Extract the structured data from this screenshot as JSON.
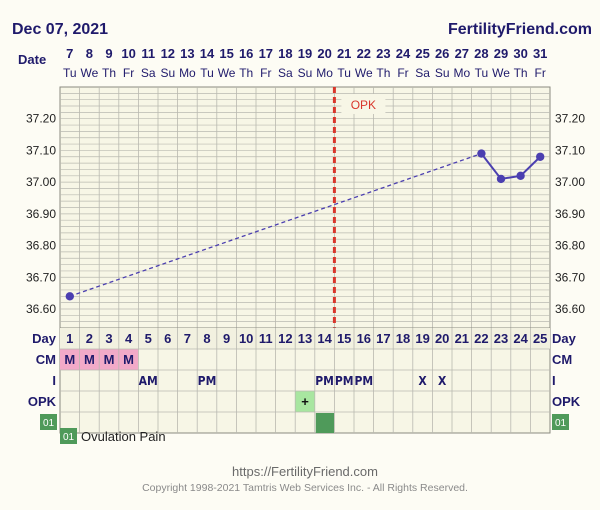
{
  "header": {
    "date": "Dec 07, 2021",
    "brand": "FertilityFriend.com"
  },
  "labels": {
    "date": "Date",
    "day": "Day",
    "cm": "CM",
    "i": "I",
    "opk": "OPK",
    "note_code": "01"
  },
  "dates": [
    "7",
    "8",
    "9",
    "10",
    "11",
    "12",
    "13",
    "14",
    "15",
    "16",
    "17",
    "18",
    "19",
    "20",
    "21",
    "22",
    "23",
    "24",
    "25",
    "26",
    "27",
    "28",
    "29",
    "30",
    "31"
  ],
  "weekdays": [
    "Tu",
    "We",
    "Th",
    "Fr",
    "Sa",
    "Su",
    "Mo",
    "Tu",
    "We",
    "Th",
    "Fr",
    "Sa",
    "Su",
    "Mo",
    "Tu",
    "We",
    "Th",
    "Fr",
    "Sa",
    "Su",
    "Mo",
    "Tu",
    "We",
    "Th",
    "Fr"
  ],
  "cm": [
    "M",
    "M",
    "M",
    "M",
    "",
    "",
    "",
    "",
    "",
    "",
    "",
    "",
    "",
    "",
    "",
    "",
    "",
    "",
    "",
    "",
    "",
    "",
    "",
    "",
    ""
  ],
  "intercourse": [
    "",
    "",
    "",
    "",
    "AM",
    "",
    "",
    "PM",
    "",
    "",
    "",
    "",
    "",
    "PM",
    "PM",
    "PM",
    "",
    "",
    "X",
    "X",
    "",
    "",
    "",
    "",
    ""
  ],
  "opk": [
    "",
    "",
    "",
    "",
    "",
    "",
    "",
    "",
    "",
    "",
    "",
    "",
    "+",
    "",
    "",
    "",
    "",
    "",
    "",
    "",
    "",
    "",
    "",
    "",
    ""
  ],
  "notes": [
    "",
    "",
    "",
    "",
    "",
    "",
    "",
    "",
    "",
    "",
    "",
    "",
    "",
    "01",
    "",
    "",
    "",
    "",
    "",
    "",
    "",
    "",
    "",
    "",
    ""
  ],
  "legend": {
    "code": "01",
    "text": "Ovulation Pain"
  },
  "footer": {
    "url": "https://FertilityFriend.com",
    "copyright": "Copyright 1998-2021 Tamtris Web Services Inc. - All Rights Reserved."
  },
  "colors": {
    "line": "#4b3fb0",
    "ovulation": "#d9362b",
    "cm": "#f2aac8",
    "opk_pos": "#a8e6a0",
    "note": "#4f9a5a",
    "grid": "#b9b9b0",
    "text": "#1f1a6b"
  },
  "chart_data": {
    "type": "line",
    "x": [
      1,
      2,
      3,
      4,
      5,
      6,
      7,
      8,
      9,
      10,
      11,
      12,
      13,
      14,
      15,
      16,
      17,
      18,
      19,
      20,
      21,
      22,
      23,
      24,
      25
    ],
    "series": [
      {
        "values": [
          36.64,
          null,
          null,
          null,
          null,
          null,
          null,
          null,
          null,
          null,
          null,
          null,
          null,
          null,
          null,
          null,
          null,
          null,
          null,
          null,
          null,
          37.09,
          37.01,
          37.02,
          37.08
        ]
      }
    ],
    "interpolated_segment": {
      "from_day": 1,
      "to_day": 22,
      "style": "dashed"
    },
    "yticks": [
      "36.60",
      "36.70",
      "36.80",
      "36.90",
      "37.00",
      "37.10",
      "37.20"
    ],
    "ylim": [
      36.54,
      37.3
    ],
    "xlabel": "Day",
    "ylabel": "",
    "ovulation_marker": {
      "after_day": 14,
      "label": "OPK"
    },
    "grid": true
  }
}
